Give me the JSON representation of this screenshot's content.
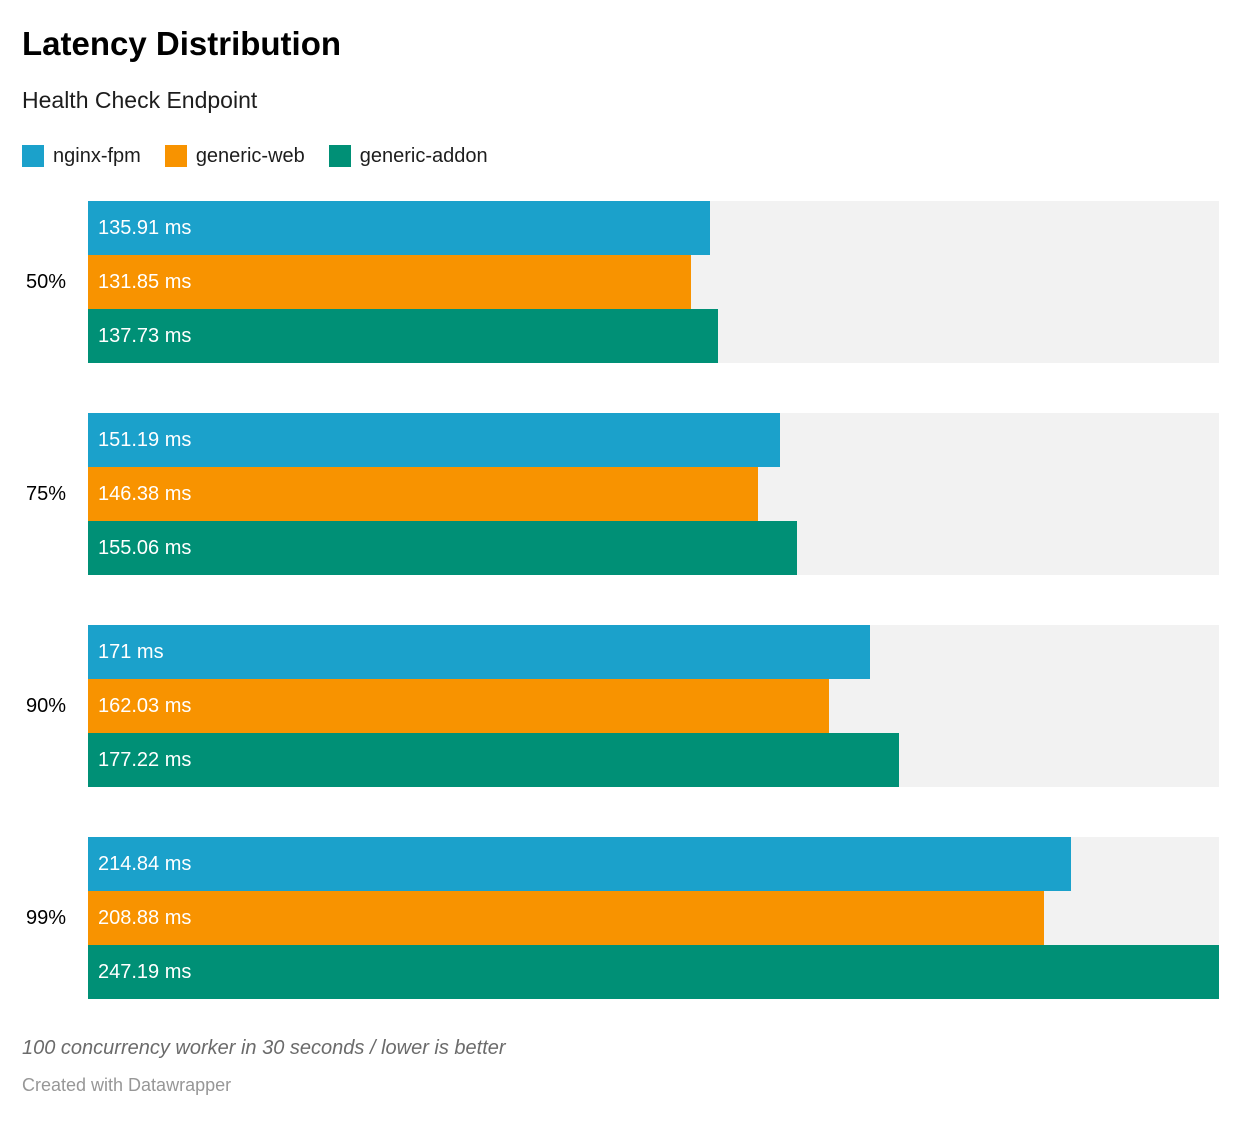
{
  "header": {
    "title": "Latency Distribution",
    "subtitle": "Health Check Endpoint"
  },
  "footer": {
    "note": "100 concurrency worker in 30 seconds / lower is better",
    "credit": "Created with Datawrapper"
  },
  "colors": {
    "track": "#f2f2f2",
    "bar_label_text": "#ffffff",
    "series_blue": "#1ba1cb",
    "series_orange": "#f89300",
    "series_teal": "#009076"
  },
  "chart_data": {
    "type": "bar",
    "orientation": "horizontal",
    "grouped": true,
    "title": "Latency Distribution",
    "subtitle": "Health Check Endpoint",
    "xlabel": "",
    "ylabel": "",
    "unit": "ms",
    "xlim": [
      0,
      247.19
    ],
    "grid": false,
    "legend_position": "top",
    "value_labels_inside_bars": true,
    "categories": [
      "50%",
      "75%",
      "90%",
      "99%"
    ],
    "series": [
      {
        "name": "nginx-fpm",
        "color": "#1ba1cb",
        "values": [
          135.91,
          151.19,
          171,
          214.84
        ],
        "labels": [
          "135.91 ms",
          "151.19 ms",
          "171 ms",
          "214.84 ms"
        ]
      },
      {
        "name": "generic-web",
        "color": "#f89300",
        "values": [
          131.85,
          146.38,
          162.03,
          208.88
        ],
        "labels": [
          "131.85 ms",
          "146.38 ms",
          "162.03 ms",
          "208.88 ms"
        ]
      },
      {
        "name": "generic-addon",
        "color": "#009076",
        "values": [
          137.73,
          155.06,
          177.22,
          247.19
        ],
        "labels": [
          "137.73 ms",
          "155.06 ms",
          "177.22 ms",
          "247.19 ms"
        ]
      }
    ]
  }
}
